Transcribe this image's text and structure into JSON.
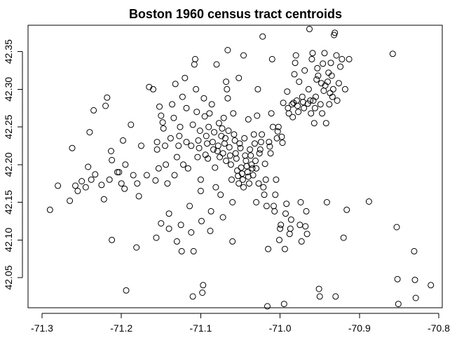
{
  "chart_data": {
    "type": "scatter",
    "title": "Boston 1960 census tract centroids",
    "xlabel": "",
    "ylabel": "",
    "xlim": [
      -71.3,
      -70.8
    ],
    "ylim": [
      42.01,
      42.385
    ],
    "x_ticks": [
      -71.3,
      -71.2,
      -71.1,
      -71.0,
      -70.9,
      -70.8
    ],
    "x_tick_labels": [
      "-71.3",
      "-71.2",
      "-71.1",
      "-71.0",
      "-70.9",
      "-70.8"
    ],
    "y_ticks": [
      42.05,
      42.1,
      42.15,
      42.2,
      42.25,
      42.3,
      42.35
    ],
    "y_tick_labels": [
      "42.05",
      "42.10",
      "42.15",
      "42.20",
      "42.25",
      "42.30",
      "42.35"
    ],
    "grid": false,
    "legend": "none",
    "marker": "open-circle",
    "points": [
      [
        -71.29,
        42.14
      ],
      [
        -71.28,
        42.172
      ],
      [
        -71.265,
        42.152
      ],
      [
        -71.262,
        42.222
      ],
      [
        -71.258,
        42.172
      ],
      [
        -71.255,
        42.165
      ],
      [
        -71.25,
        42.178
      ],
      [
        -71.245,
        42.17
      ],
      [
        -71.242,
        42.197
      ],
      [
        -71.24,
        42.243
      ],
      [
        -71.238,
        42.18
      ],
      [
        -71.235,
        42.272
      ],
      [
        -71.233,
        42.187
      ],
      [
        -71.225,
        42.173
      ],
      [
        -71.222,
        42.154
      ],
      [
        -71.22,
        42.278
      ],
      [
        -71.218,
        42.289
      ],
      [
        -71.215,
        42.18
      ],
      [
        -71.213,
        42.218
      ],
      [
        -71.212,
        42.206
      ],
      [
        -71.212,
        42.1
      ],
      [
        -71.205,
        42.19
      ],
      [
        -71.203,
        42.19
      ],
      [
        -71.2,
        42.175
      ],
      [
        -71.198,
        42.232
      ],
      [
        -71.196,
        42.168
      ],
      [
        -71.195,
        42.2
      ],
      [
        -71.194,
        42.033
      ],
      [
        -71.188,
        42.253
      ],
      [
        -71.185,
        42.186
      ],
      [
        -71.181,
        42.09
      ],
      [
        -71.18,
        42.175
      ],
      [
        -71.178,
        42.158
      ],
      [
        -71.175,
        42.225
      ],
      [
        -71.168,
        42.186
      ],
      [
        -71.165,
        42.303
      ],
      [
        -71.16,
        42.3
      ],
      [
        -71.157,
        42.179
      ],
      [
        -71.156,
        42.103
      ],
      [
        -71.155,
        42.23
      ],
      [
        -71.155,
        42.22
      ],
      [
        -71.153,
        42.195
      ],
      [
        -71.152,
        42.277
      ],
      [
        -71.15,
        42.122
      ],
      [
        -71.15,
        42.265
      ],
      [
        -71.148,
        42.256
      ],
      [
        -71.147,
        42.248
      ],
      [
        -71.145,
        42.225
      ],
      [
        -71.144,
        42.2
      ],
      [
        -71.142,
        42.175
      ],
      [
        -71.14,
        42.135
      ],
      [
        -71.14,
        42.115
      ],
      [
        -71.138,
        42.235
      ],
      [
        -71.136,
        42.28
      ],
      [
        -71.134,
        42.262
      ],
      [
        -71.133,
        42.186
      ],
      [
        -71.132,
        42.307
      ],
      [
        -71.13,
        42.098
      ],
      [
        -71.13,
        42.21
      ],
      [
        -71.128,
        42.225
      ],
      [
        -71.127,
        42.238
      ],
      [
        -71.126,
        42.25
      ],
      [
        -71.125,
        42.12
      ],
      [
        -71.124,
        42.085
      ],
      [
        -71.123,
        42.29
      ],
      [
        -71.122,
        42.2
      ],
      [
        -71.12,
        42.315
      ],
      [
        -71.118,
        42.275
      ],
      [
        -71.118,
        42.23
      ],
      [
        -71.116,
        42.195
      ],
      [
        -71.114,
        42.145
      ],
      [
        -71.112,
        42.11
      ],
      [
        -71.112,
        42.225
      ],
      [
        -71.11,
        42.253
      ],
      [
        -71.11,
        42.025
      ],
      [
        -71.109,
        42.085
      ],
      [
        -71.108,
        42.333
      ],
      [
        -71.107,
        42.34
      ],
      [
        -71.106,
        42.3
      ],
      [
        -71.105,
        42.27
      ],
      [
        -71.104,
        42.21
      ],
      [
        -71.103,
        42.232
      ],
      [
        -71.102,
        42.222
      ],
      [
        -71.101,
        42.245
      ],
      [
        -71.1,
        42.18
      ],
      [
        -71.1,
        42.165
      ],
      [
        -71.099,
        42.125
      ],
      [
        -71.098,
        42.03
      ],
      [
        -71.097,
        42.04
      ],
      [
        -71.096,
        42.288
      ],
      [
        -71.095,
        42.264
      ],
      [
        -71.094,
        42.213
      ],
      [
        -71.093,
        42.238
      ],
      [
        -71.092,
        42.228
      ],
      [
        -71.091,
        42.208
      ],
      [
        -71.09,
        42.25
      ],
      [
        -71.089,
        42.268
      ],
      [
        -71.088,
        42.112
      ],
      [
        -71.087,
        42.138
      ],
      [
        -71.086,
        42.28
      ],
      [
        -71.085,
        42.23
      ],
      [
        -71.084,
        42.22
      ],
      [
        -71.083,
        42.243
      ],
      [
        -71.082,
        42.196
      ],
      [
        -71.081,
        42.17
      ],
      [
        -71.08,
        42.333
      ],
      [
        -71.079,
        42.218
      ],
      [
        -71.078,
        42.225
      ],
      [
        -71.077,
        42.255
      ],
      [
        -71.076,
        42.21
      ],
      [
        -71.075,
        42.16
      ],
      [
        -71.074,
        42.238
      ],
      [
        -71.073,
        42.248
      ],
      [
        -71.072,
        42.13
      ],
      [
        -71.072,
        42.215
      ],
      [
        -71.071,
        42.262
      ],
      [
        -71.07,
        42.228
      ],
      [
        -71.069,
        42.235
      ],
      [
        -71.068,
        42.205
      ],
      [
        -71.068,
        42.31
      ],
      [
        -71.067,
        42.3
      ],
      [
        -71.066,
        42.288
      ],
      [
        -71.066,
        42.352
      ],
      [
        -71.065,
        42.245
      ],
      [
        -71.064,
        42.223
      ],
      [
        -71.063,
        42.212
      ],
      [
        -71.062,
        42.2
      ],
      [
        -71.061,
        42.18
      ],
      [
        -71.06,
        42.15
      ],
      [
        -71.06,
        42.098
      ],
      [
        -71.059,
        42.268
      ],
      [
        -71.058,
        42.24
      ],
      [
        -71.057,
        42.232
      ],
      [
        -71.056,
        42.215
      ],
      [
        -71.055,
        42.208
      ],
      [
        -71.054,
        42.192
      ],
      [
        -71.053,
        42.185
      ],
      [
        -71.052,
        42.175
      ],
      [
        -71.052,
        42.315
      ],
      [
        -71.051,
        42.228
      ],
      [
        -71.05,
        42.222
      ],
      [
        -71.049,
        42.196
      ],
      [
        -71.048,
        42.188
      ],
      [
        -71.047,
        42.18
      ],
      [
        -71.046,
        42.17
      ],
      [
        -71.046,
        42.345
      ],
      [
        -71.045,
        42.235
      ],
      [
        -71.044,
        42.212
      ],
      [
        -71.043,
        42.205
      ],
      [
        -71.042,
        42.198
      ],
      [
        -71.041,
        42.19
      ],
      [
        -71.04,
        42.184
      ],
      [
        -71.04,
        42.26
      ],
      [
        -71.039,
        42.175
      ],
      [
        -71.038,
        42.22
      ],
      [
        -71.037,
        42.212
      ],
      [
        -71.036,
        42.2
      ],
      [
        -71.035,
        42.195
      ],
      [
        -71.034,
        42.186
      ],
      [
        -71.033,
        42.24
      ],
      [
        -71.032,
        42.228
      ],
      [
        -71.031,
        42.205
      ],
      [
        -71.03,
        42.195
      ],
      [
        -71.03,
        42.15
      ],
      [
        -71.029,
        42.265
      ],
      [
        -71.028,
        42.3
      ],
      [
        -71.027,
        42.175
      ],
      [
        -71.026,
        42.215
      ],
      [
        -71.025,
        42.22
      ],
      [
        -71.024,
        42.23
      ],
      [
        -71.023,
        42.24
      ],
      [
        -71.022,
        42.37
      ],
      [
        -71.021,
        42.17
      ],
      [
        -71.02,
        42.16
      ],
      [
        -71.019,
        42.201
      ],
      [
        -71.018,
        42.18
      ],
      [
        -71.017,
        42.145
      ],
      [
        -71.016,
        42.012
      ],
      [
        -71.015,
        42.088
      ],
      [
        -71.014,
        42.23
      ],
      [
        -71.013,
        42.224
      ],
      [
        -71.012,
        42.215
      ],
      [
        -71.011,
        42.268
      ],
      [
        -71.01,
        42.34
      ],
      [
        -71.009,
        42.25
      ],
      [
        -71.008,
        42.145
      ],
      [
        -71.007,
        42.138
      ],
      [
        -71.006,
        42.16
      ],
      [
        -71.005,
        42.18
      ],
      [
        -71.004,
        42.235
      ],
      [
        -71.003,
        42.244
      ],
      [
        -71.002,
        42.25
      ],
      [
        -71.001,
        42.1
      ],
      [
        -71.0,
        42.115
      ],
      [
        -70.999,
        42.12
      ],
      [
        -70.998,
        42.237
      ],
      [
        -70.997,
        42.229
      ],
      [
        -70.996,
        42.282
      ],
      [
        -70.995,
        42.015
      ],
      [
        -70.994,
        42.088
      ],
      [
        -70.993,
        42.135
      ],
      [
        -70.992,
        42.148
      ],
      [
        -70.991,
        42.297
      ],
      [
        -70.99,
        42.275
      ],
      [
        -70.989,
        42.268
      ],
      [
        -70.988,
        42.108
      ],
      [
        -70.987,
        42.115
      ],
      [
        -70.986,
        42.127
      ],
      [
        -70.985,
        42.28
      ],
      [
        -70.984,
        42.263
      ],
      [
        -70.983,
        42.282
      ],
      [
        -70.982,
        42.32
      ],
      [
        -70.981,
        42.335
      ],
      [
        -70.98,
        42.345
      ],
      [
        -70.979,
        42.285
      ],
      [
        -70.978,
        42.278
      ],
      [
        -70.977,
        42.27
      ],
      [
        -70.976,
        42.31
      ],
      [
        -70.975,
        42.12
      ],
      [
        -70.974,
        42.15
      ],
      [
        -70.973,
        42.098
      ],
      [
        -70.972,
        42.29
      ],
      [
        -70.971,
        42.283
      ],
      [
        -70.97,
        42.275
      ],
      [
        -70.969,
        42.325
      ],
      [
        -70.968,
        42.118
      ],
      [
        -70.967,
        42.138
      ],
      [
        -70.966,
        42.108
      ],
      [
        -70.965,
        42.281
      ],
      [
        -70.964,
        42.3
      ],
      [
        -70.963,
        42.38
      ],
      [
        -70.962,
        42.285
      ],
      [
        -70.961,
        42.268
      ],
      [
        -70.96,
        42.34
      ],
      [
        -70.959,
        42.348
      ],
      [
        -70.958,
        42.285
      ],
      [
        -70.957,
        42.255
      ],
      [
        -70.956,
        42.275
      ],
      [
        -70.955,
        42.29
      ],
      [
        -70.954,
        42.313
      ],
      [
        -70.953,
        42.328
      ],
      [
        -70.952,
        42.318
      ],
      [
        -70.951,
        42.035
      ],
      [
        -70.95,
        42.025
      ],
      [
        -70.949,
        42.28
      ],
      [
        -70.948,
        42.308
      ],
      [
        -70.947,
        42.268
      ],
      [
        -70.946,
        42.334
      ],
      [
        -70.945,
        42.298
      ],
      [
        -70.944,
        42.348
      ],
      [
        -70.943,
        42.305
      ],
      [
        -70.942,
        42.255
      ],
      [
        -70.941,
        42.15
      ],
      [
        -70.94,
        42.31
      ],
      [
        -70.939,
        42.322
      ],
      [
        -70.938,
        42.28
      ],
      [
        -70.937,
        42.295
      ],
      [
        -70.936,
        42.335
      ],
      [
        -70.935,
        42.318
      ],
      [
        -70.934,
        42.29
      ],
      [
        -70.933,
        42.3
      ],
      [
        -70.932,
        42.372
      ],
      [
        -70.931,
        42.375
      ],
      [
        -70.93,
        42.025
      ],
      [
        -70.929,
        42.345
      ],
      [
        -70.928,
        42.285
      ],
      [
        -70.926,
        42.308
      ],
      [
        -70.924,
        42.33
      ],
      [
        -70.922,
        42.34
      ],
      [
        -70.92,
        42.103
      ],
      [
        -70.918,
        42.3
      ],
      [
        -70.916,
        42.14
      ],
      [
        -70.913,
        42.34
      ],
      [
        -70.888,
        42.151
      ],
      [
        -70.858,
        42.347
      ],
      [
        -70.853,
        42.117
      ],
      [
        -70.852,
        42.048
      ],
      [
        -70.851,
        42.015
      ],
      [
        -70.831,
        42.085
      ],
      [
        -70.83,
        42.047
      ],
      [
        -70.829,
        42.023
      ],
      [
        -70.81,
        42.04
      ]
    ]
  }
}
